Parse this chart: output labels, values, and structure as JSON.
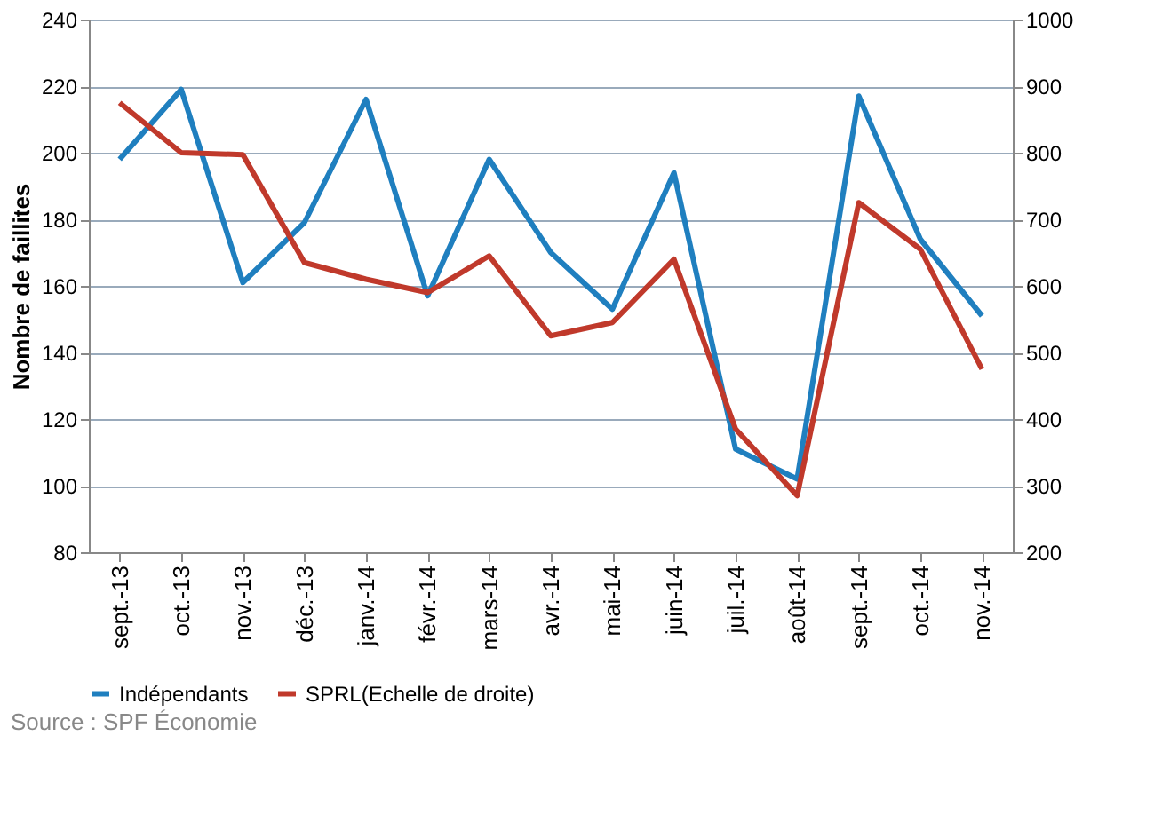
{
  "chart_data": {
    "type": "line",
    "ylabel": "Nombre de faillites",
    "categories": [
      "sept.-13",
      "oct.-13",
      "nov.-13",
      "déc.-13",
      "janv.-14",
      "févr.-14",
      "mars-14",
      "avr.-14",
      "mai-14",
      "juin-14",
      "juil.-14",
      "août-14",
      "sept.-14",
      "oct.-14",
      "nov.-14"
    ],
    "series": [
      {
        "name": "Indépendants",
        "color": "#1f7fbf",
        "values": [
          198,
          219,
          161,
          179,
          216,
          157,
          198,
          170,
          153,
          194,
          111,
          102,
          217,
          174,
          151
        ]
      },
      {
        "name": "SPRL(Echelle de droite)",
        "color": "#c0392b",
        "axis": "y2",
        "values": [
          875,
          800,
          797,
          635,
          610,
          590,
          645,
          525,
          545,
          640,
          385,
          285,
          725,
          655,
          475
        ]
      }
    ],
    "ylim": [
      80,
      240
    ],
    "yticks": [
      80,
      100,
      120,
      140,
      160,
      180,
      200,
      220,
      240
    ],
    "y2lim": [
      200,
      1000
    ],
    "y2ticks": [
      200,
      300,
      400,
      500,
      600,
      700,
      800,
      900,
      1000
    ],
    "grid": "y",
    "legend": "bottom",
    "line_style": "solid",
    "marker": "none",
    "annotations": [
      "Source : SPF Économie"
    ]
  }
}
